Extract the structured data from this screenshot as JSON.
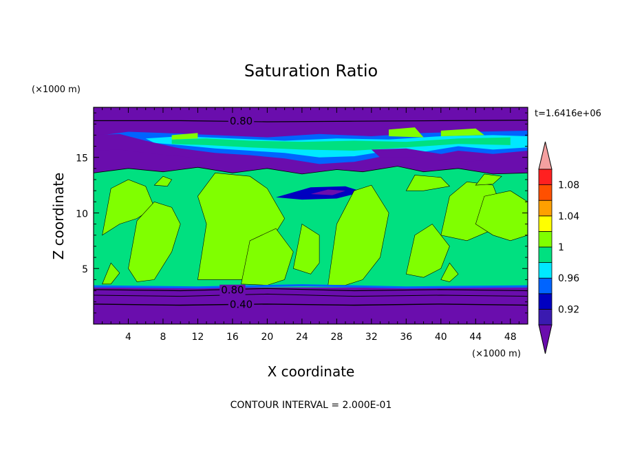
{
  "chart_data": {
    "type": "heatmap",
    "title": "Saturation Ratio",
    "xlabel": "X coordinate",
    "ylabel": "Z coordinate",
    "x_unit": "(×1000 m)",
    "y_unit": "(×1000 m)",
    "time_label": "t=1.6416e+06",
    "footer": "CONTOUR INTERVAL = 2.000E-01",
    "xlim": [
      0,
      50
    ],
    "ylim": [
      0,
      19.5
    ],
    "x_ticks": [
      4,
      8,
      12,
      16,
      20,
      24,
      28,
      32,
      36,
      40,
      44,
      48
    ],
    "y_ticks": [
      5,
      10,
      15
    ],
    "contour_labels": [
      {
        "text": "0.80",
        "x": 17,
        "y": 18.25
      },
      {
        "text": "0.80",
        "x": 16,
        "y": 3.05
      },
      {
        "text": "0.40",
        "x": 17,
        "y": 1.75
      }
    ],
    "colorbar": {
      "levels": [
        "0.92",
        "0.96",
        "1",
        "1.04",
        "1.08"
      ],
      "colors": [
        "#6a0dad",
        "#3a1ab0",
        "#0000c0",
        "#0064ff",
        "#00e8ff",
        "#00e080",
        "#80ff00",
        "#ffff00",
        "#ffa000",
        "#ff5000",
        "#ff2020",
        "#f4a0a0"
      ],
      "under_color": "#6a0dad",
      "over_color": "#f4a0a0"
    },
    "regions": {
      "sub_saturated": "#6a0dad",
      "near_saturated": "#00e080",
      "super_saturated": "#80ff00",
      "band_edge": "#0064ff",
      "band_core": "#00e8ff",
      "dark_blue": "#0000c0"
    }
  }
}
